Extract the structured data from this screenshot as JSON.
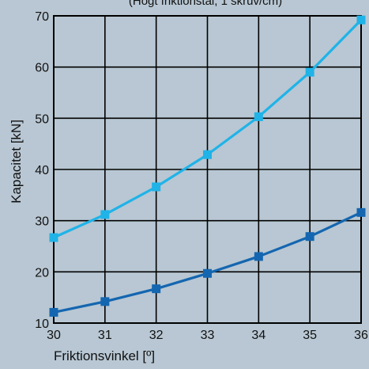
{
  "chart_data": {
    "type": "line",
    "title": "",
    "top_text_fragment": "(Högt friktionstal, 1 skruv/cm)",
    "xlabel": "Friktionsvinkel [º]",
    "ylabel": "Kapacitet [kN]",
    "xlim": [
      30,
      36
    ],
    "ylim": [
      10,
      70
    ],
    "x_ticks": [
      "30",
      "31",
      "32",
      "33",
      "34",
      "35",
      "36"
    ],
    "y_ticks": [
      "10",
      "20",
      "30",
      "40",
      "50",
      "60",
      "70"
    ],
    "grid": true,
    "legend": "none",
    "x": [
      30,
      31,
      32,
      33,
      34,
      35,
      36
    ],
    "series": [
      {
        "color": "#1fb3e8",
        "values": [
          26.7,
          31.2,
          36.6,
          42.9,
          50.3,
          59.0,
          69.2
        ]
      },
      {
        "color": "#1466b0",
        "values": [
          12.1,
          14.2,
          16.7,
          19.7,
          23.0,
          26.9,
          31.6
        ]
      }
    ]
  }
}
